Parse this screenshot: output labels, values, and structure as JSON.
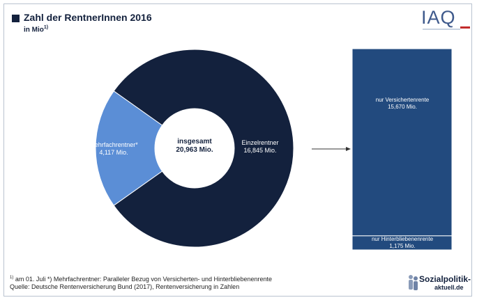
{
  "title": "Zahl der RentnerInnen 2016",
  "subtitle": "in Mio",
  "subtitle_footnote_mark": "1)",
  "logo_text": "IAQ",
  "colors": {
    "einzel": "#13213d",
    "mehrfach": "#5b8ed6",
    "bar": "#224a7e",
    "title": "#13213d"
  },
  "chart_data": [
    {
      "type": "pie",
      "variant": "donut",
      "center_label": [
        "insgesamt",
        "20,963 Mio."
      ],
      "slices": [
        {
          "label": "Einzelrentner",
          "value": 16.845,
          "value_label": "16,845 Mio.",
          "color": "#13213d"
        },
        {
          "label": "Mehrfachrentner*",
          "value": 4.117,
          "value_label": "4,117 Mio.",
          "color": "#5b8ed6"
        }
      ]
    },
    {
      "type": "bar",
      "variant": "stacked",
      "breakdown_of": "Einzelrentner",
      "segments": [
        {
          "label": "nur Versichertenrente",
          "value": 15.67,
          "value_label": "15,670 Mio.",
          "color": "#224a7e"
        },
        {
          "label": "nur Hinterbliebenenrente",
          "value": 1.175,
          "value_label": "1,175 Mio.",
          "color": "#224a7e"
        }
      ]
    }
  ],
  "footnotes": {
    "line1_mark": "1)",
    "line1": " am 01. Juli    *) Mehrfachrentner: Paralleler Bezug von Versicherten- und Hinterbliebenenrente",
    "line2": "Quelle: Deutsche Rentenversicherung Bund (2017), Rentenversicherung in Zahlen"
  },
  "brand": {
    "name": "Sozialpolitik-",
    "domain": "aktuell.de"
  }
}
